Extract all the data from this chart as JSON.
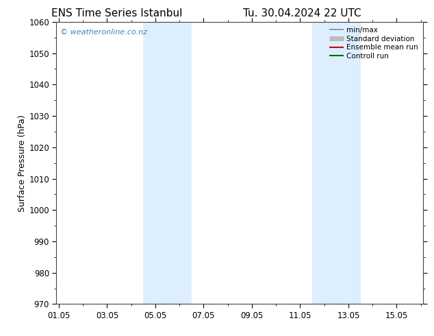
{
  "title_left": "ENS Time Series Istanbul",
  "title_right": "Tu. 30.04.2024 22 UTC",
  "ylabel": "Surface Pressure (hPa)",
  "ylim": [
    970,
    1060
  ],
  "yticks": [
    970,
    980,
    990,
    1000,
    1010,
    1020,
    1030,
    1040,
    1050,
    1060
  ],
  "xtick_labels": [
    "01.05",
    "03.05",
    "05.05",
    "07.05",
    "09.05",
    "11.05",
    "13.05",
    "15.05"
  ],
  "xtick_positions": [
    0,
    2,
    4,
    6,
    8,
    10,
    12,
    14
  ],
  "xlim": [
    -0.1,
    15.1
  ],
  "shaded_bands": [
    {
      "xmin": 3.5,
      "xmax": 5.5
    },
    {
      "xmin": 10.5,
      "xmax": 12.5
    }
  ],
  "shade_color": "#ddeeff",
  "watermark_text": "© weatheronline.co.nz",
  "watermark_color": "#3388cc",
  "legend_entries": [
    {
      "label": "min/max",
      "color": "#888888",
      "lw": 1.2
    },
    {
      "label": "Standard deviation",
      "color": "#bbbbbb",
      "lw": 5
    },
    {
      "label": "Ensemble mean run",
      "color": "#cc0000",
      "lw": 1.5
    },
    {
      "label": "Controll run",
      "color": "#006600",
      "lw": 1.5
    }
  ],
  "bg_color": "#ffffff",
  "spine_color": "#444444",
  "title_fontsize": 11,
  "label_fontsize": 9,
  "tick_fontsize": 8.5,
  "watermark_fontsize": 8
}
